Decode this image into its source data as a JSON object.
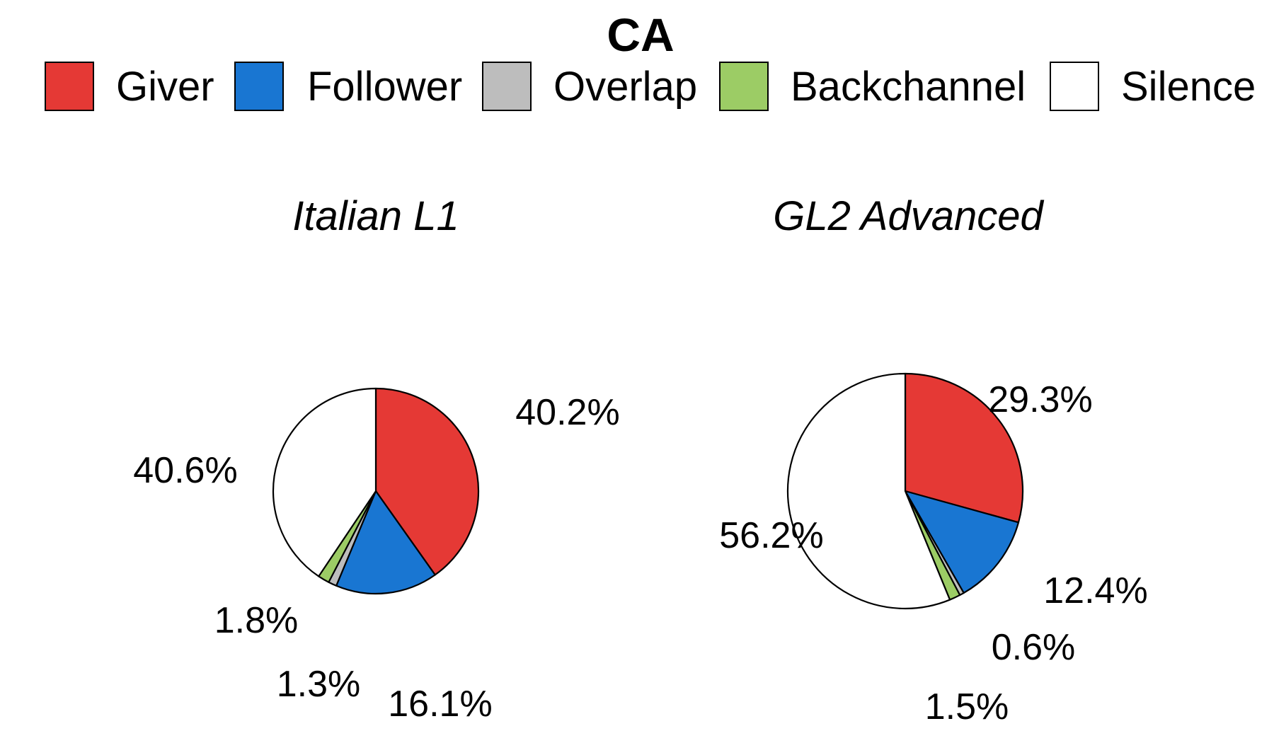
{
  "chart_data": {
    "type": "pie",
    "title": "CA",
    "legend": {
      "placement": "top",
      "entries": [
        {
          "name": "Giver",
          "color": "#e53935"
        },
        {
          "name": "Follower",
          "color": "#1976d2"
        },
        {
          "name": "Overlap",
          "color": "#bdbdbd"
        },
        {
          "name": "Backchannel",
          "color": "#9ccc65"
        },
        {
          "name": "Silence",
          "color": "#ffffff"
        }
      ]
    },
    "categories": [
      "Giver",
      "Follower",
      "Overlap",
      "Backchannel",
      "Silence"
    ],
    "charts": [
      {
        "title": "Italian L1",
        "values": [
          40.2,
          16.1,
          1.3,
          1.8,
          40.6
        ],
        "labels": [
          "40.2%",
          "16.1%",
          "1.3%",
          "1.8%",
          "40.6%"
        ]
      },
      {
        "title": "GL2 Advanced",
        "values": [
          29.3,
          12.4,
          0.6,
          1.5,
          56.2
        ],
        "labels": [
          "29.3%",
          "12.4%",
          "0.6%",
          "1.5%",
          "56.2%"
        ]
      }
    ]
  }
}
